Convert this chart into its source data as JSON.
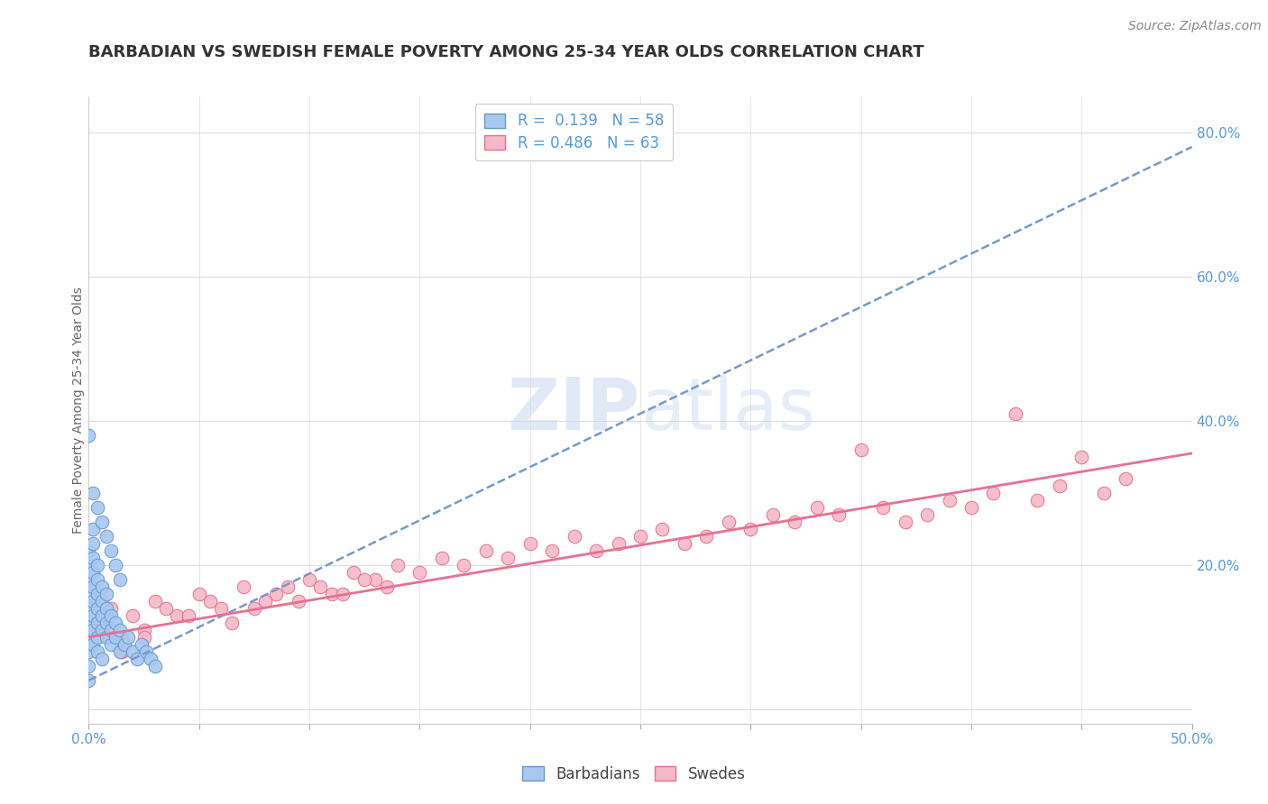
{
  "title": "BARBADIAN VS SWEDISH FEMALE POVERTY AMONG 25-34 YEAR OLDS CORRELATION CHART",
  "source": "Source: ZipAtlas.com",
  "ylabel": "Female Poverty Among 25-34 Year Olds",
  "xlim": [
    0.0,
    0.5
  ],
  "ylim": [
    -0.02,
    0.85
  ],
  "barbadian_R": 0.139,
  "barbadian_N": 58,
  "swedish_R": 0.486,
  "swedish_N": 63,
  "barbadian_color": "#a8c8f0",
  "barbadian_edge_color": "#6699cc",
  "barbadian_line_color": "#7799cc",
  "swedish_color": "#f5b8c8",
  "swedish_edge_color": "#e87090",
  "swedish_line_color": "#e87090",
  "background_color": "#ffffff",
  "grid_color": "#dddddd",
  "tick_color": "#5599dd",
  "title_color": "#333333",
  "ylabel_color": "#666666",
  "watermark_color": "#e0e8f0",
  "barbadian_x": [
    0.0,
    0.0,
    0.0,
    0.0,
    0.0,
    0.0,
    0.0,
    0.0,
    0.0,
    0.0,
    0.002,
    0.002,
    0.002,
    0.002,
    0.002,
    0.002,
    0.002,
    0.002,
    0.002,
    0.004,
    0.004,
    0.004,
    0.004,
    0.004,
    0.004,
    0.004,
    0.006,
    0.006,
    0.006,
    0.006,
    0.006,
    0.008,
    0.008,
    0.008,
    0.008,
    0.01,
    0.01,
    0.01,
    0.012,
    0.012,
    0.014,
    0.014,
    0.016,
    0.018,
    0.02,
    0.022,
    0.024,
    0.026,
    0.028,
    0.03,
    0.0,
    0.002,
    0.004,
    0.006,
    0.008,
    0.01,
    0.012,
    0.014
  ],
  "barbadian_y": [
    0.1,
    0.12,
    0.14,
    0.16,
    0.18,
    0.2,
    0.22,
    0.08,
    0.06,
    0.04,
    0.11,
    0.13,
    0.15,
    0.17,
    0.19,
    0.21,
    0.23,
    0.09,
    0.25,
    0.1,
    0.12,
    0.14,
    0.16,
    0.18,
    0.2,
    0.08,
    0.11,
    0.13,
    0.15,
    0.17,
    0.07,
    0.1,
    0.12,
    0.14,
    0.16,
    0.11,
    0.13,
    0.09,
    0.1,
    0.12,
    0.11,
    0.08,
    0.09,
    0.1,
    0.08,
    0.07,
    0.09,
    0.08,
    0.07,
    0.06,
    0.38,
    0.3,
    0.28,
    0.26,
    0.24,
    0.22,
    0.2,
    0.18
  ],
  "swedish_x": [
    0.005,
    0.01,
    0.015,
    0.02,
    0.025,
    0.03,
    0.04,
    0.05,
    0.06,
    0.07,
    0.08,
    0.09,
    0.1,
    0.11,
    0.12,
    0.13,
    0.14,
    0.15,
    0.16,
    0.17,
    0.18,
    0.19,
    0.2,
    0.21,
    0.22,
    0.23,
    0.24,
    0.25,
    0.26,
    0.27,
    0.28,
    0.29,
    0.3,
    0.31,
    0.32,
    0.33,
    0.34,
    0.35,
    0.36,
    0.37,
    0.38,
    0.39,
    0.4,
    0.41,
    0.42,
    0.43,
    0.44,
    0.45,
    0.46,
    0.47,
    0.015,
    0.025,
    0.035,
    0.045,
    0.055,
    0.065,
    0.075,
    0.085,
    0.095,
    0.105,
    0.115,
    0.125,
    0.135
  ],
  "swedish_y": [
    0.12,
    0.14,
    0.1,
    0.13,
    0.11,
    0.15,
    0.13,
    0.16,
    0.14,
    0.17,
    0.15,
    0.17,
    0.18,
    0.16,
    0.19,
    0.18,
    0.2,
    0.19,
    0.21,
    0.2,
    0.22,
    0.21,
    0.23,
    0.22,
    0.24,
    0.22,
    0.23,
    0.24,
    0.25,
    0.23,
    0.24,
    0.26,
    0.25,
    0.27,
    0.26,
    0.28,
    0.27,
    0.36,
    0.28,
    0.26,
    0.27,
    0.29,
    0.28,
    0.3,
    0.41,
    0.29,
    0.31,
    0.35,
    0.3,
    0.32,
    0.08,
    0.1,
    0.14,
    0.13,
    0.15,
    0.12,
    0.14,
    0.16,
    0.15,
    0.17,
    0.16,
    0.18,
    0.17
  ],
  "barb_trend_x0": 0.0,
  "barb_trend_y0": 0.04,
  "barb_trend_x1": 0.5,
  "barb_trend_y1": 0.78,
  "swed_trend_x0": 0.0,
  "swed_trend_y0": 0.1,
  "swed_trend_x1": 0.5,
  "swed_trend_y1": 0.355,
  "title_fontsize": 13,
  "label_fontsize": 10,
  "tick_fontsize": 11,
  "legend_fontsize": 12
}
